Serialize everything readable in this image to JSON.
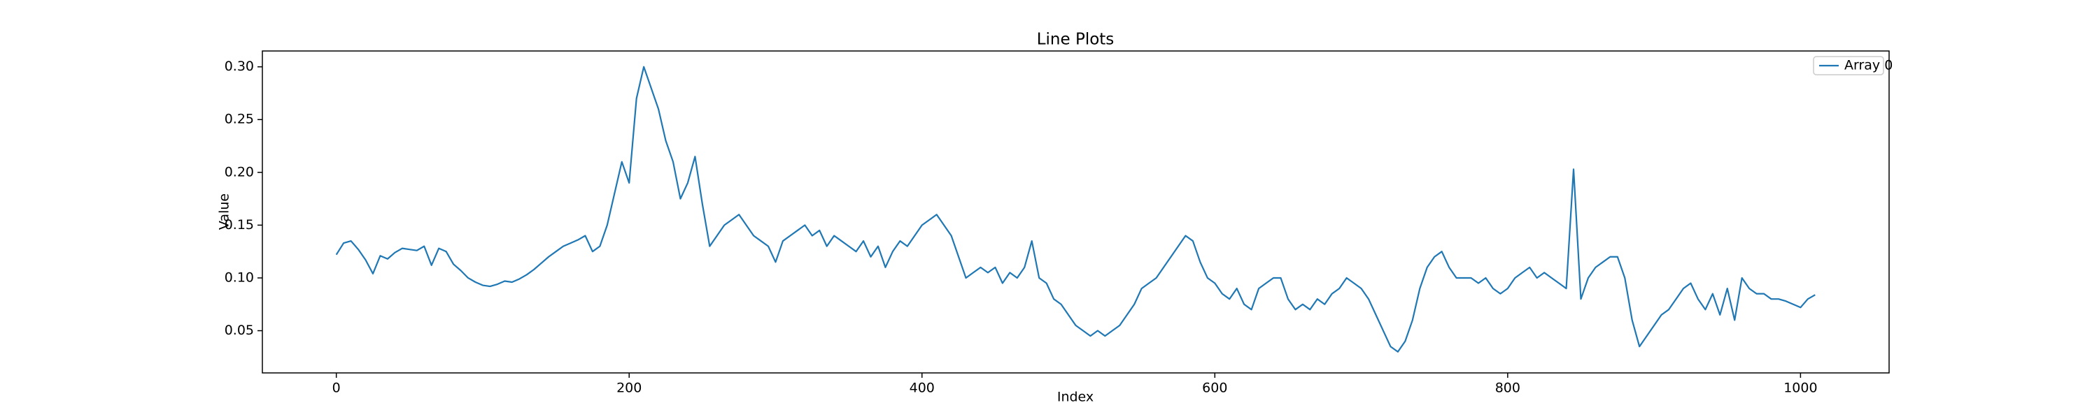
{
  "chart_data": {
    "type": "line",
    "title": "Line Plots",
    "xlabel": "Index",
    "ylabel": "Value",
    "x": [
      0,
      5,
      10,
      15,
      20,
      25,
      30,
      35,
      40,
      45,
      50,
      55,
      60,
      65,
      70,
      75,
      80,
      85,
      90,
      95,
      100,
      105,
      110,
      115,
      120,
      125,
      130,
      135,
      140,
      145,
      150,
      155,
      160,
      165,
      170,
      175,
      180,
      185,
      190,
      195,
      200,
      205,
      210,
      215,
      220,
      225,
      230,
      235,
      240,
      245,
      250,
      255,
      260,
      265,
      270,
      275,
      280,
      285,
      290,
      295,
      300,
      305,
      310,
      315,
      320,
      325,
      330,
      335,
      340,
      345,
      350,
      355,
      360,
      365,
      370,
      375,
      380,
      385,
      390,
      395,
      400,
      405,
      410,
      415,
      420,
      425,
      430,
      435,
      440,
      445,
      450,
      455,
      460,
      465,
      470,
      475,
      480,
      485,
      490,
      495,
      500,
      505,
      510,
      515,
      520,
      525,
      530,
      535,
      540,
      545,
      550,
      555,
      560,
      565,
      570,
      575,
      580,
      585,
      590,
      595,
      600,
      605,
      610,
      615,
      620,
      625,
      630,
      635,
      640,
      645,
      650,
      655,
      660,
      665,
      670,
      675,
      680,
      685,
      690,
      695,
      700,
      705,
      710,
      715,
      720,
      725,
      730,
      735,
      740,
      745,
      750,
      755,
      760,
      765,
      770,
      775,
      780,
      785,
      790,
      795,
      800,
      805,
      810,
      815,
      820,
      825,
      830,
      835,
      840,
      845,
      850,
      855,
      860,
      865,
      870,
      875,
      880,
      885,
      890,
      895,
      900,
      905,
      910,
      915,
      920,
      925,
      930,
      935,
      940,
      945,
      950,
      955,
      960,
      965,
      970,
      975,
      980,
      985,
      990,
      995,
      1000,
      1005,
      1010
    ],
    "series": [
      {
        "name": "Array 0",
        "color": "#1f77b4",
        "values": [
          0.122,
          0.133,
          0.135,
          0.127,
          0.117,
          0.104,
          0.121,
          0.118,
          0.124,
          0.128,
          0.127,
          0.126,
          0.13,
          0.112,
          0.128,
          0.125,
          0.113,
          0.107,
          0.1,
          0.096,
          0.093,
          0.092,
          0.094,
          0.097,
          0.096,
          0.099,
          0.103,
          0.108,
          0.114,
          0.12,
          0.125,
          0.13,
          0.133,
          0.136,
          0.14,
          0.125,
          0.13,
          0.15,
          0.18,
          0.21,
          0.19,
          0.27,
          0.3,
          0.28,
          0.26,
          0.23,
          0.21,
          0.175,
          0.19,
          0.215,
          0.17,
          0.13,
          0.14,
          0.15,
          0.155,
          0.16,
          0.15,
          0.14,
          0.135,
          0.13,
          0.115,
          0.135,
          0.14,
          0.145,
          0.15,
          0.14,
          0.145,
          0.13,
          0.14,
          0.135,
          0.13,
          0.125,
          0.135,
          0.12,
          0.13,
          0.11,
          0.125,
          0.135,
          0.13,
          0.14,
          0.15,
          0.155,
          0.16,
          0.15,
          0.14,
          0.12,
          0.1,
          0.105,
          0.11,
          0.105,
          0.11,
          0.095,
          0.105,
          0.1,
          0.11,
          0.135,
          0.1,
          0.095,
          0.08,
          0.075,
          0.065,
          0.055,
          0.05,
          0.045,
          0.05,
          0.045,
          0.05,
          0.055,
          0.065,
          0.075,
          0.09,
          0.095,
          0.1,
          0.11,
          0.12,
          0.13,
          0.14,
          0.135,
          0.115,
          0.1,
          0.095,
          0.085,
          0.08,
          0.09,
          0.075,
          0.07,
          0.09,
          0.095,
          0.1,
          0.1,
          0.08,
          0.07,
          0.075,
          0.07,
          0.08,
          0.075,
          0.085,
          0.09,
          0.1,
          0.095,
          0.09,
          0.08,
          0.065,
          0.05,
          0.035,
          0.03,
          0.04,
          0.06,
          0.09,
          0.11,
          0.12,
          0.125,
          0.11,
          0.1,
          0.1,
          0.1,
          0.095,
          0.1,
          0.09,
          0.085,
          0.09,
          0.1,
          0.105,
          0.11,
          0.1,
          0.105,
          0.1,
          0.095,
          0.09,
          0.203,
          0.08,
          0.1,
          0.11,
          0.115,
          0.12,
          0.12,
          0.1,
          0.06,
          0.035,
          0.045,
          0.055,
          0.065,
          0.07,
          0.08,
          0.09,
          0.095,
          0.08,
          0.07,
          0.085,
          0.065,
          0.09,
          0.06,
          0.1,
          0.09,
          0.085,
          0.085,
          0.08,
          0.08,
          0.078,
          0.075,
          0.072,
          0.08,
          0.084
        ]
      }
    ],
    "xlim": [
      -50.5,
      1060.5
    ],
    "ylim": [
      0.01,
      0.315
    ],
    "xticks": [
      0,
      200,
      400,
      600,
      800,
      1000
    ],
    "yticks": [
      0.05,
      {
        "value": 0.1,
        "label": "0.10"
      },
      0.15,
      {
        "value": 0.2,
        "label": "0.20"
      },
      0.25,
      {
        "value": 0.3,
        "label": "0.30"
      }
    ],
    "legend": "upper right"
  }
}
